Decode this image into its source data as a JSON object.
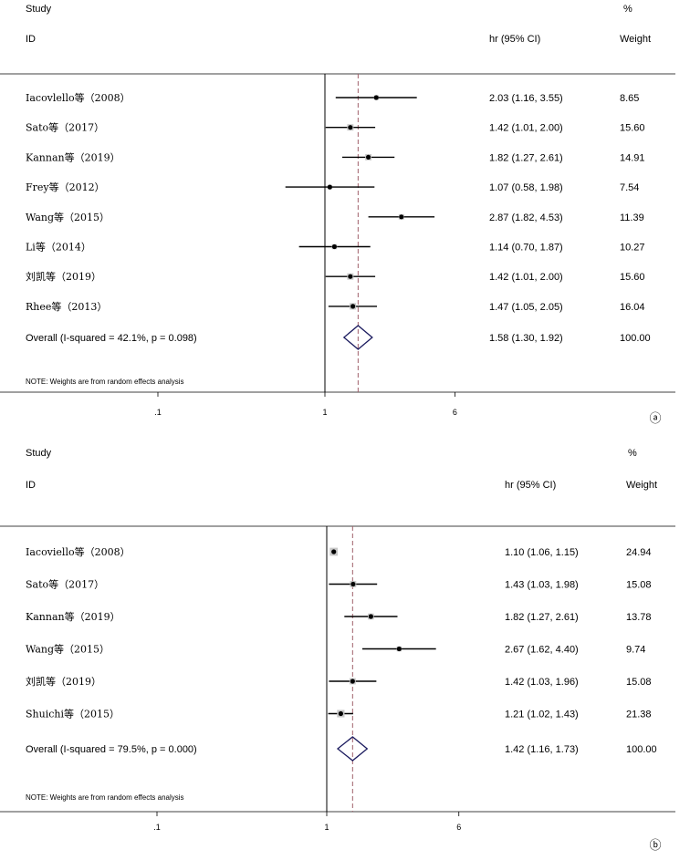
{
  "chart_data": [
    {
      "type": "forest",
      "panel_label": "ⓐ",
      "header": {
        "study": "Study",
        "id": "ID",
        "hr": "hr (95% CI)",
        "pct": "%",
        "weight": "Weight"
      },
      "x_scale": "log",
      "x_ticks": [
        ".1",
        "1",
        "6"
      ],
      "x_tick_values": [
        0.1,
        1,
        6
      ],
      "null_line": 1,
      "overall_line": 1.58,
      "studies": [
        {
          "label": "Iacovlello等（2008）",
          "hr": 2.03,
          "lo": 1.16,
          "hi": 3.55,
          "ci_text": "2.03 (1.16, 3.55)",
          "weight": 8.65,
          "weight_text": "8.65"
        },
        {
          "label": "Sato等（2017）",
          "hr": 1.42,
          "lo": 1.01,
          "hi": 2.0,
          "ci_text": "1.42 (1.01, 2.00)",
          "weight": 15.6,
          "weight_text": "15.60"
        },
        {
          "label": "Kannan等（2019）",
          "hr": 1.82,
          "lo": 1.27,
          "hi": 2.61,
          "ci_text": "1.82 (1.27, 2.61)",
          "weight": 14.91,
          "weight_text": "14.91"
        },
        {
          "label": "Frey等（2012）",
          "hr": 1.07,
          "lo": 0.58,
          "hi": 1.98,
          "ci_text": "1.07 (0.58, 1.98)",
          "weight": 7.54,
          "weight_text": "7.54"
        },
        {
          "label": "Wang等（2015）",
          "hr": 2.87,
          "lo": 1.82,
          "hi": 4.53,
          "ci_text": "2.87 (1.82, 4.53)",
          "weight": 11.39,
          "weight_text": "11.39"
        },
        {
          "label": "Li等（2014）",
          "hr": 1.14,
          "lo": 0.7,
          "hi": 1.87,
          "ci_text": "1.14 (0.70, 1.87)",
          "weight": 10.27,
          "weight_text": "10.27"
        },
        {
          "label": "刘凯等（2019）",
          "hr": 1.42,
          "lo": 1.01,
          "hi": 2.0,
          "ci_text": "1.42 (1.01, 2.00)",
          "weight": 15.6,
          "weight_text": "15.60"
        },
        {
          "label": "Rhee等（2013）",
          "hr": 1.47,
          "lo": 1.05,
          "hi": 2.05,
          "ci_text": "1.47 (1.05, 2.05)",
          "weight": 16.04,
          "weight_text": "16.04"
        }
      ],
      "overall": {
        "label": "Overall  (I-squared = 42.1%, p = 0.098)",
        "hr": 1.58,
        "lo": 1.3,
        "hi": 1.92,
        "ci_text": "1.58 (1.30, 1.92)",
        "weight_text": "100.00"
      },
      "note": "NOTE: Weights are from random effects analysis"
    },
    {
      "type": "forest",
      "panel_label": "ⓑ",
      "header": {
        "study": "Study",
        "id": "ID",
        "hr": "hr (95% CI)",
        "pct": "%",
        "weight": "Weight"
      },
      "x_scale": "log",
      "x_ticks": [
        ".1",
        "1",
        "6"
      ],
      "x_tick_values": [
        0.1,
        1,
        6
      ],
      "null_line": 1,
      "overall_line": 1.42,
      "studies": [
        {
          "label": "Iacoviello等（2008）",
          "hr": 1.1,
          "lo": 1.06,
          "hi": 1.15,
          "ci_text": "1.10 (1.06, 1.15)",
          "weight": 24.94,
          "weight_text": "24.94"
        },
        {
          "label": "Sato等（2017）",
          "hr": 1.43,
          "lo": 1.03,
          "hi": 1.98,
          "ci_text": "1.43 (1.03, 1.98)",
          "weight": 15.08,
          "weight_text": "15.08"
        },
        {
          "label": "Kannan等（2019）",
          "hr": 1.82,
          "lo": 1.27,
          "hi": 2.61,
          "ci_text": "1.82 (1.27, 2.61)",
          "weight": 13.78,
          "weight_text": "13.78"
        },
        {
          "label": "Wang等（2015）",
          "hr": 2.67,
          "lo": 1.62,
          "hi": 4.4,
          "ci_text": "2.67 (1.62, 4.40)",
          "weight": 9.74,
          "weight_text": "9.74"
        },
        {
          "label": "刘凯等（2019）",
          "hr": 1.42,
          "lo": 1.03,
          "hi": 1.96,
          "ci_text": "1.42 (1.03, 1.96)",
          "weight": 15.08,
          "weight_text": "15.08"
        },
        {
          "label": "Shuichi等（2015）",
          "hr": 1.21,
          "lo": 1.02,
          "hi": 1.43,
          "ci_text": "1.21 (1.02, 1.43)",
          "weight": 21.38,
          "weight_text": "21.38"
        }
      ],
      "overall": {
        "label": "Overall  (I-squared = 79.5%, p = 0.000)",
        "hr": 1.42,
        "lo": 1.16,
        "hi": 1.73,
        "ci_text": "1.42 (1.16, 1.73)",
        "weight_text": "100.00"
      },
      "note": "NOTE: Weights are from random effects analysis"
    }
  ]
}
